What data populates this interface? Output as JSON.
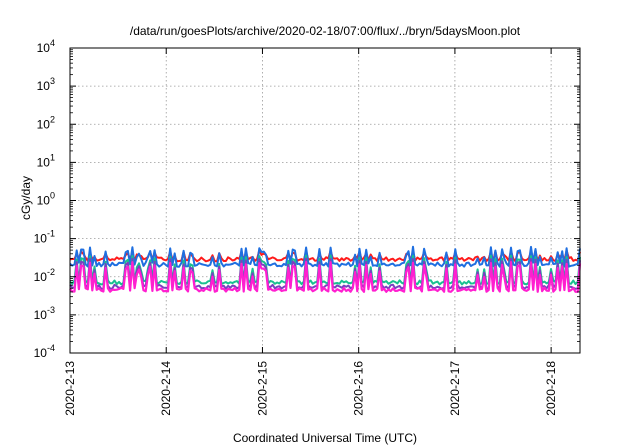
{
  "chart_data": {
    "type": "line",
    "title": "/data/run/goesPlots/archive/2020-02-18/07:00/flux/../bryn/5daysMoon.plot",
    "xlabel": "Coordinated Universal Time (UTC)",
    "ylabel": "cGy/day",
    "yscale": "log",
    "ylim": [
      0.0001,
      10000
    ],
    "y_ticks": [
      {
        "base": "10",
        "exp": "-4"
      },
      {
        "base": "10",
        "exp": "-3"
      },
      {
        "base": "10",
        "exp": "-2"
      },
      {
        "base": "10",
        "exp": "-1"
      },
      {
        "base": "10",
        "exp": "0"
      },
      {
        "base": "10",
        "exp": "1"
      },
      {
        "base": "10",
        "exp": "2"
      },
      {
        "base": "10",
        "exp": "3"
      },
      {
        "base": "10",
        "exp": "4"
      }
    ],
    "x_ticks": [
      "2020-2-13",
      "2020-2-14",
      "2020-2-15",
      "2020-2-16",
      "2020-2-17",
      "2020-2-18"
    ],
    "x_range_days": [
      0,
      5.3
    ],
    "grid": true,
    "series": [
      {
        "color": "#ff1a1a",
        "base": 0.029,
        "spike": 0.048
      },
      {
        "color": "#1f6fe0",
        "base": 0.021,
        "spike": 0.06
      },
      {
        "color": "#19c090",
        "base": 0.0072,
        "spike": 0.036
      },
      {
        "color": "#7a40c0",
        "base": 0.0055,
        "spike": 0.03
      },
      {
        "color": "#ff1fd0",
        "base": 0.0046,
        "spike": 0.024
      }
    ]
  }
}
